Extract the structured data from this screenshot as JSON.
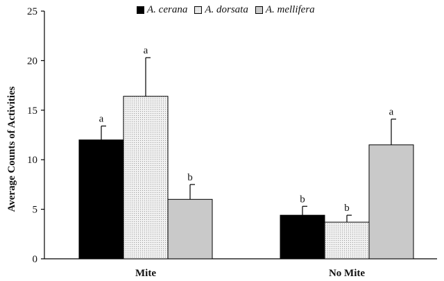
{
  "chart_data": {
    "type": "bar",
    "title": "",
    "xlabel": "",
    "ylabel": "Average Counts of Activities",
    "ylim": [
      0,
      25
    ],
    "yticks": [
      "0",
      "5",
      "10",
      "15",
      "20",
      "25"
    ],
    "categories": [
      "Mite",
      "No Mite"
    ],
    "legend_position": "top",
    "grid": false,
    "series": [
      {
        "name": "A. cerana",
        "color": "#000000",
        "fill": "solid",
        "values": [
          12.0,
          4.4
        ],
        "errors": [
          1.4,
          0.9
        ],
        "letters": [
          "a",
          "b"
        ]
      },
      {
        "name": "A. dorsata",
        "color": "#f2f2f2",
        "fill": "dotted",
        "values": [
          16.4,
          3.7
        ],
        "errors": [
          3.9,
          0.7
        ],
        "letters": [
          "a",
          "b"
        ]
      },
      {
        "name": "A. mellifera",
        "color": "#c9c9c9",
        "fill": "solid",
        "values": [
          6.0,
          11.5
        ],
        "errors": [
          1.5,
          2.6
        ],
        "letters": [
          "b",
          "a"
        ]
      }
    ]
  }
}
